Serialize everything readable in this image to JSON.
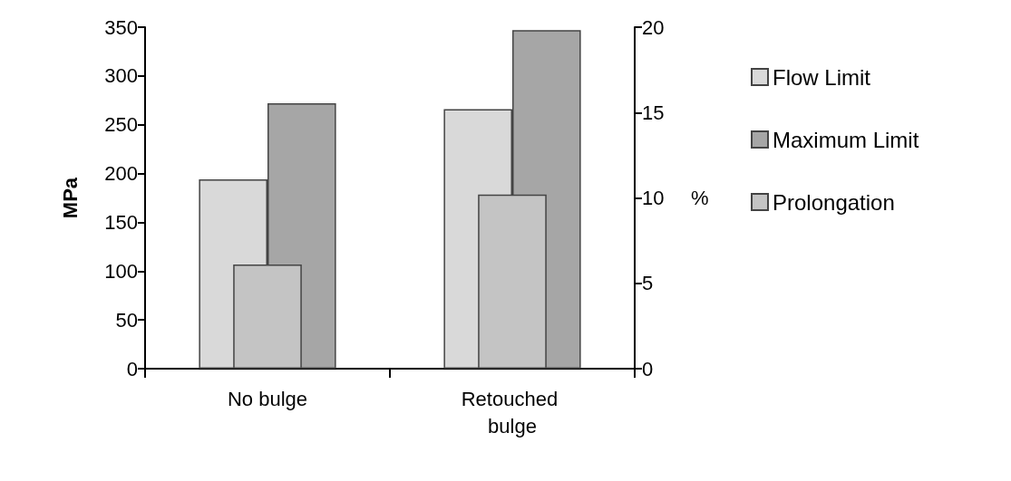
{
  "chart_data": {
    "type": "bar",
    "ylabel": "MPa",
    "y2label": "%",
    "categories": [
      "No bulge",
      "Retouched bulge"
    ],
    "series": [
      {
        "name": "Flow Limit",
        "color": "#d9d9d9",
        "values": [
          194,
          266
        ]
      },
      {
        "name": "Maximum Limit",
        "color": "#a6a6a6",
        "values": [
          272,
          347
        ]
      },
      {
        "name": "Prolongation",
        "color": "#c4c4c4",
        "values": [
          6.1,
          10.2
        ],
        "axis": "y2"
      }
    ],
    "ylim": [
      0,
      350
    ],
    "yticks": [
      0,
      50,
      100,
      150,
      200,
      250,
      300,
      350
    ],
    "y2lim": [
      0,
      20
    ],
    "y2ticks": [
      0,
      5,
      10,
      15,
      20
    ],
    "grid": false,
    "legend": "right"
  }
}
